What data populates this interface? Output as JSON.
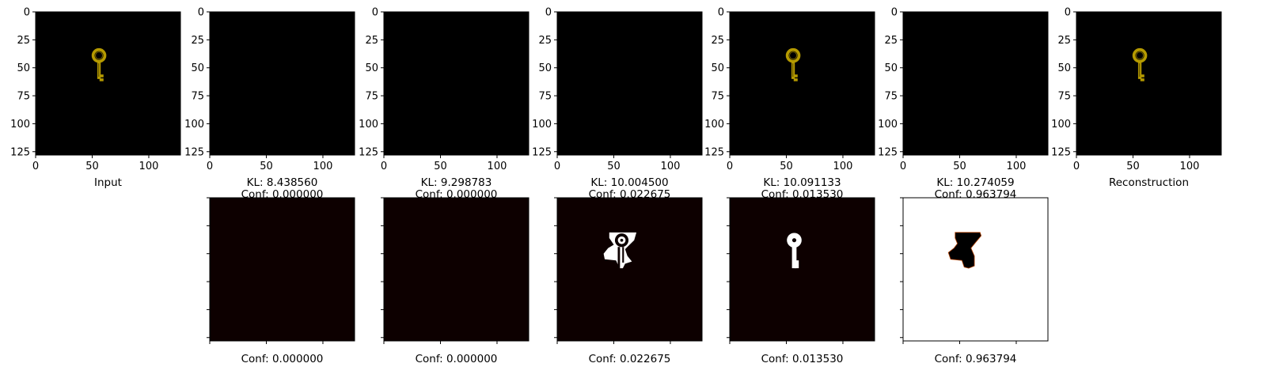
{
  "chart_data": {
    "type": "image-grid",
    "image_axis": {
      "ticks": [
        0,
        50,
        100
      ],
      "yticks": [
        0,
        25,
        50,
        75,
        100,
        125
      ],
      "range": [
        0,
        128
      ]
    },
    "colors": {
      "key_gold": "#b59a00",
      "key_dark": "#6b5a00",
      "mask_bg": "#0d0000",
      "mask_fg": "#ffffff",
      "black": "#000000"
    },
    "top_row": [
      {
        "kind": "key",
        "caption": "Input"
      },
      {
        "kind": "black",
        "kl": "KL: 8.438560",
        "conf": "Conf: 0.000000"
      },
      {
        "kind": "black",
        "kl": "KL: 9.298783",
        "conf": "Conf: 0.000000"
      },
      {
        "kind": "black",
        "kl": "KL: 10.004500",
        "conf": "Conf: 0.022675"
      },
      {
        "kind": "key",
        "kl": "KL: 10.091133",
        "conf": "Conf: 0.013530"
      },
      {
        "kind": "black",
        "kl": "KL: 10.274059",
        "conf": "Conf: 0.963794"
      },
      {
        "kind": "key",
        "caption": "Reconstruction"
      }
    ],
    "bottom_row": [
      {
        "kind": "mask-empty",
        "caption": "Conf: 0.000000"
      },
      {
        "kind": "mask-empty",
        "caption": "Conf: 0.000000"
      },
      {
        "kind": "mask-partial",
        "caption": "Conf: 0.022675"
      },
      {
        "kind": "mask-key",
        "caption": "Conf: 0.013530"
      },
      {
        "kind": "mask-inverse",
        "caption": "Conf: 0.963794"
      }
    ]
  }
}
